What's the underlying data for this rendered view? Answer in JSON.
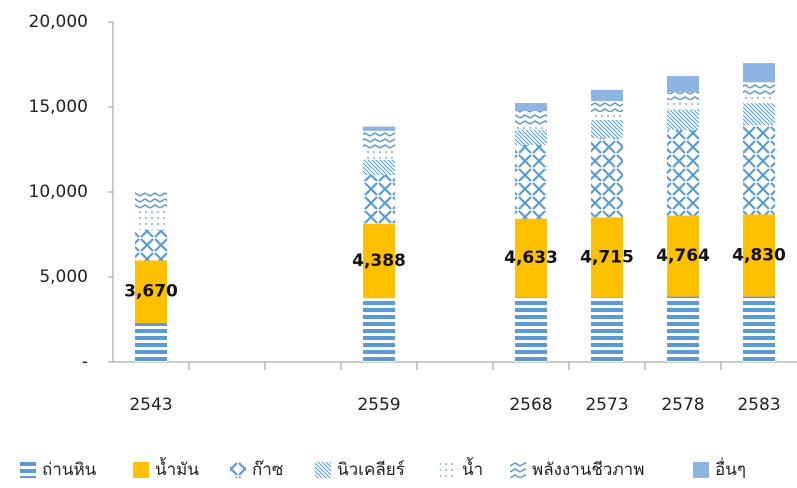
{
  "chart_data": {
    "type": "stacked_bar",
    "categories": [
      "2543",
      null,
      null,
      "2559",
      null,
      "2568",
      "2573",
      "2578",
      "2583"
    ],
    "series": [
      {
        "name": "ถ่านหิน",
        "color": "#5b9bd5",
        "pattern": "hstripe",
        "values": [
          2300,
          null,
          null,
          3750,
          null,
          3800,
          3800,
          3850,
          3850
        ]
      },
      {
        "name": "น้ำมัน",
        "color": "#ffc000",
        "pattern": "solid",
        "values": [
          3670,
          null,
          null,
          4388,
          null,
          4633,
          4715,
          4764,
          4830
        ],
        "value_labels": [
          "3,670",
          null,
          null,
          "4,388",
          null,
          "4,633",
          "4,715",
          "4,764",
          "4,830"
        ]
      },
      {
        "name": "ก๊าซ",
        "color": "#5b9bd5",
        "pattern": "cross",
        "values": [
          1800,
          null,
          null,
          2860,
          null,
          4330,
          4660,
          5030,
          5260
        ]
      },
      {
        "name": "นิวเคลียร์",
        "color": "#5b9bd5",
        "pattern": "diag",
        "values": [
          0,
          null,
          null,
          900,
          null,
          880,
          1060,
          1180,
          1290
        ]
      },
      {
        "name": "น้ำ",
        "color": "#5b9bd5",
        "pattern": "dots",
        "values": [
          1200,
          null,
          null,
          600,
          null,
          300,
          470,
          590,
          470
        ]
      },
      {
        "name": "พลังงานชีวภาพ",
        "color": "#5b9bd5",
        "pattern": "wave",
        "values": [
          1000,
          null,
          null,
          1100,
          null,
          820,
          650,
          470,
          760
        ]
      },
      {
        "name": "อื่นๆ",
        "color": "#8eb4e3",
        "pattern": "solid",
        "values": [
          0,
          null,
          null,
          250,
          null,
          470,
          650,
          940,
          1120
        ]
      }
    ],
    "ylim": [
      0,
      20000
    ],
    "yticks": [
      {
        "value": 0,
        "label": "-"
      },
      {
        "value": 5000,
        "label": "5,000"
      },
      {
        "value": 10000,
        "label": "10,000"
      },
      {
        "value": 15000,
        "label": "15,000"
      },
      {
        "value": 20000,
        "label": "20,000"
      }
    ],
    "legend": "bottom"
  }
}
